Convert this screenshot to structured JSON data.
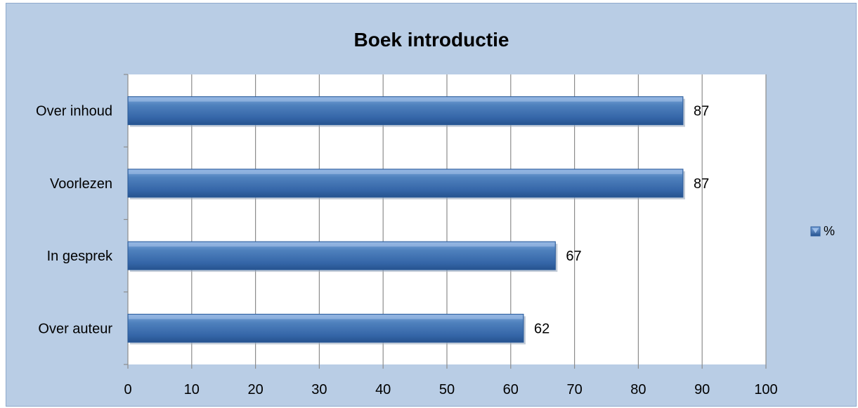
{
  "chart_data": {
    "type": "bar",
    "orientation": "horizontal",
    "title": "Boek introductie",
    "xlabel": "",
    "ylabel": "",
    "categories": [
      "Over inhoud",
      "Voorlezen",
      "In gesprek",
      "Over auteur"
    ],
    "series": [
      {
        "name": "%",
        "values": [
          87,
          87,
          67,
          62
        ],
        "color": "#4f81bd"
      }
    ],
    "xlim": [
      0,
      100
    ],
    "x_ticks": [
      "0",
      "10",
      "20",
      "30",
      "40",
      "50",
      "60",
      "70",
      "80",
      "90",
      "100"
    ],
    "grid": "vertical",
    "legend": "right",
    "data_labels": true
  },
  "colors": {
    "background": "#b9cde5",
    "plot_area": "#ffffff",
    "bar_fill": "#4f81bd",
    "bar_dark": "#2a5b9a",
    "gridline": "#8c8c8c"
  }
}
